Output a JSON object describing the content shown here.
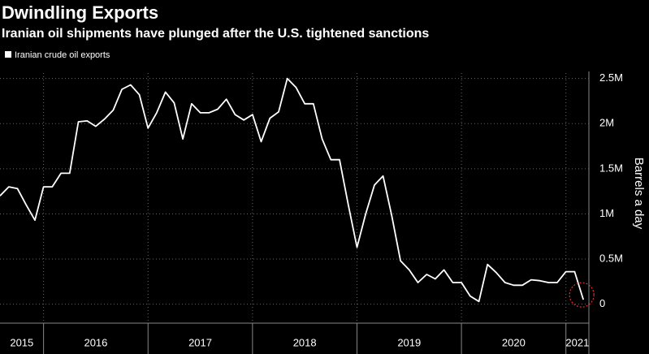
{
  "chart_data": {
    "type": "line",
    "title": "Dwindling Exports",
    "subtitle": "Iranian oil shipments have plunged after the U.S. tightened sanctions",
    "y_label": "Barrels a day",
    "x": [
      2015.583,
      2015.667,
      2015.75,
      2015.833,
      2015.917,
      2016,
      2016.083,
      2016.167,
      2016.25,
      2016.333,
      2016.417,
      2016.5,
      2016.583,
      2016.667,
      2016.75,
      2016.833,
      2016.917,
      2017,
      2017.083,
      2017.167,
      2017.25,
      2017.333,
      2017.417,
      2017.5,
      2017.583,
      2017.667,
      2017.75,
      2017.833,
      2017.917,
      2018,
      2018.083,
      2018.167,
      2018.25,
      2018.333,
      2018.417,
      2018.5,
      2018.583,
      2018.667,
      2018.75,
      2018.833,
      2018.917,
      2019,
      2019.083,
      2019.167,
      2019.25,
      2019.333,
      2019.417,
      2019.5,
      2019.583,
      2019.667,
      2019.75,
      2019.833,
      2019.917,
      2020,
      2020.083,
      2020.167,
      2020.25,
      2020.333,
      2020.417,
      2020.5,
      2020.583,
      2020.667,
      2020.75,
      2020.833,
      2020.917,
      2021,
      2021.083,
      2021.167
    ],
    "series": [
      {
        "name": "Iranian crude oil exports",
        "color": "#ffffff",
        "values": [
          1200000,
          1300000,
          1280000,
          1100000,
          930000,
          1300000,
          1300000,
          1450000,
          1450000,
          2020000,
          2030000,
          1970000,
          2050000,
          2150000,
          2380000,
          2430000,
          2320000,
          1950000,
          2120000,
          2350000,
          2230000,
          1830000,
          2220000,
          2120000,
          2120000,
          2160000,
          2270000,
          2100000,
          2040000,
          2100000,
          1800000,
          2060000,
          2130000,
          2500000,
          2400000,
          2220000,
          2220000,
          1830000,
          1600000,
          1600000,
          1100000,
          630000,
          1000000,
          1320000,
          1420000,
          980000,
          480000,
          380000,
          240000,
          330000,
          280000,
          380000,
          240000,
          240000,
          90000,
          30000,
          440000,
          350000,
          240000,
          210000,
          210000,
          270000,
          260000,
          240000,
          240000,
          360000,
          360000,
          50000
        ]
      }
    ],
    "xlim": [
      2015.583,
      2021.22
    ],
    "xticks": [
      2016,
      2017,
      2018,
      2019,
      2020,
      2021
    ],
    "x_labels": [
      "2015",
      "2016",
      "2017",
      "2018",
      "2019",
      "2020",
      "2021"
    ],
    "ylim": [
      -120000,
      2560000
    ],
    "yticks": [
      0,
      {
        "value": 500000,
        "label": "0.5M"
      },
      {
        "value": 1000000,
        "label": "1M"
      },
      {
        "value": 1500000,
        "label": "1.5M"
      },
      {
        "value": 2000000,
        "label": "2M"
      },
      {
        "value": 2500000,
        "label": "2.5M"
      }
    ],
    "grid": true
  }
}
